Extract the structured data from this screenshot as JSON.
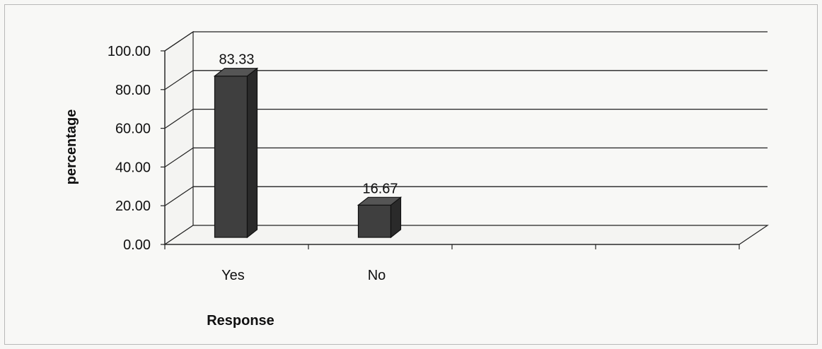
{
  "chart_data": {
    "type": "bar",
    "categories": [
      "Yes",
      "No"
    ],
    "values": [
      83.33,
      16.67
    ],
    "data_labels": [
      "83.33",
      "16.67"
    ],
    "title": "",
    "xlabel": "Response",
    "ylabel": "percentage",
    "ylim": [
      0,
      100
    ],
    "yticks": [
      "0.00",
      "20.00",
      "40.00",
      "60.00",
      "80.00",
      "100.00"
    ],
    "grid": true,
    "style": "3d-column",
    "bar_color": "#3f3f3f"
  }
}
